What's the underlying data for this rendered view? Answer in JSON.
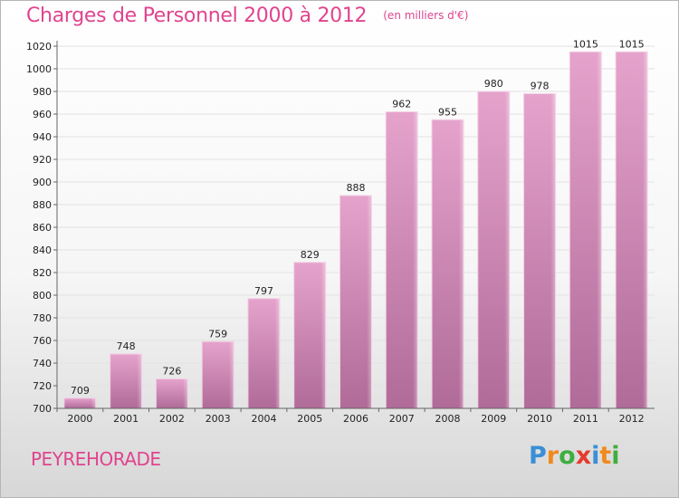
{
  "title": "Charges de Personnel 2000 à 2012",
  "subtitle": "(en milliers d'€)",
  "commune": "PEYREHORADE",
  "logo": {
    "letters": [
      "P",
      "r",
      "o",
      "x",
      "i",
      "t",
      "i"
    ],
    "colors": [
      "#3a8fd6",
      "#f08a1c",
      "#3fae3f",
      "#e63a2e",
      "#3a8fd6",
      "#f08a1c",
      "#3fae3f"
    ]
  },
  "colors": {
    "accent": "#e0448e",
    "bar_top": "#e5a3cc",
    "bar_bottom": "#b06b98",
    "grid": "#e2e2e2",
    "axis": "#666666"
  },
  "chart_data": {
    "type": "bar",
    "categories": [
      "2000",
      "2001",
      "2002",
      "2003",
      "2004",
      "2005",
      "2006",
      "2007",
      "2008",
      "2009",
      "2010",
      "2011",
      "2012"
    ],
    "values": [
      709,
      748,
      726,
      759,
      797,
      829,
      888,
      962,
      955,
      980,
      978,
      1015,
      1015
    ],
    "data_labels": [
      "709",
      "748",
      "726",
      "759",
      "797",
      "829",
      "888",
      "962",
      "955",
      "980",
      "978",
      "1015",
      "1015"
    ],
    "ylim": [
      700,
      1020
    ],
    "yticks": [
      700,
      720,
      740,
      760,
      780,
      800,
      820,
      840,
      860,
      880,
      900,
      920,
      940,
      960,
      980,
      1000,
      1020
    ],
    "grid": true,
    "legend": "none"
  }
}
